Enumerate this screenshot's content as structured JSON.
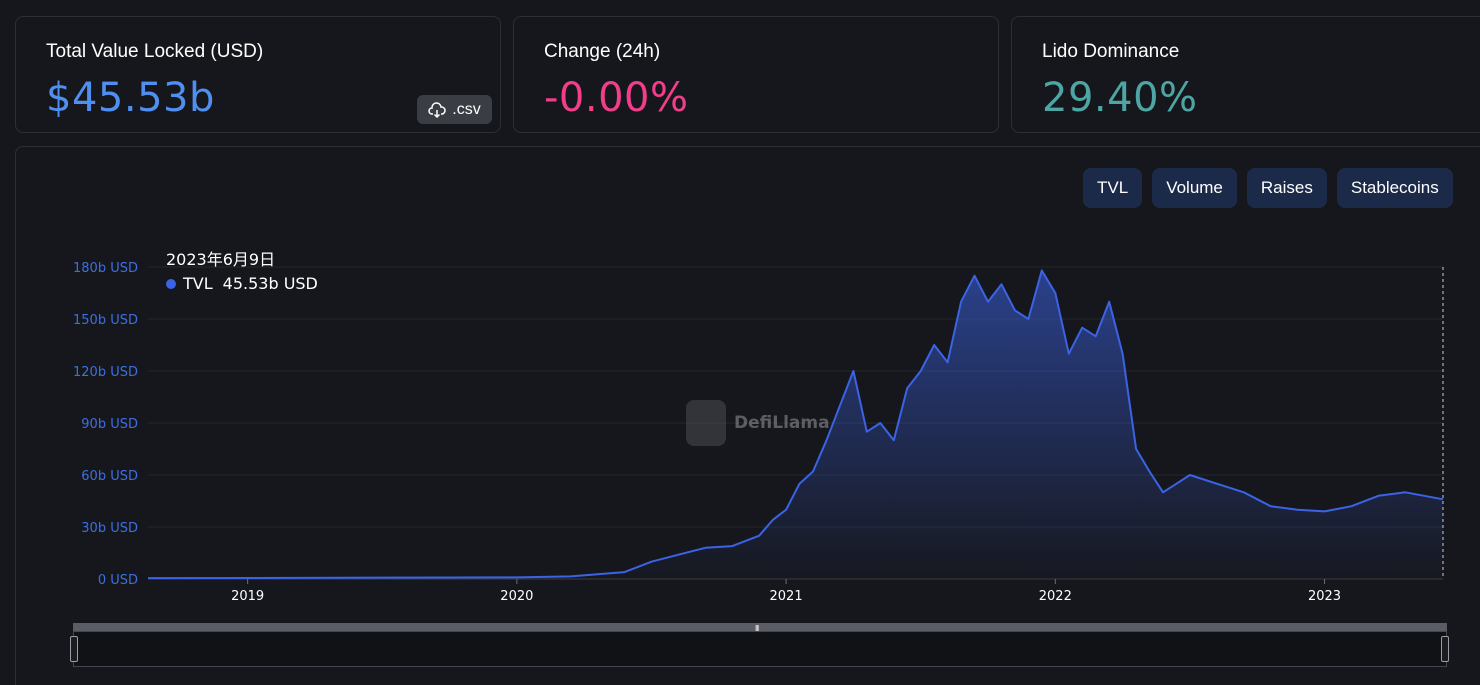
{
  "cards": {
    "tvl": {
      "label": "Total Value Locked (USD)",
      "value": "$45.53b",
      "value_color": "#4f8ff0",
      "csv_label": ".csv"
    },
    "change": {
      "label": "Change (24h)",
      "value": "-0.00%",
      "value_color": "#f23d8a"
    },
    "dominance": {
      "label": "Lido Dominance",
      "value": "29.40%",
      "value_color": "#4da6a4"
    }
  },
  "tabs": [
    {
      "label": "TVL"
    },
    {
      "label": "Volume"
    },
    {
      "label": "Raises"
    },
    {
      "label": "Stablecoins"
    }
  ],
  "tooltip": {
    "date": "2023年6月9日",
    "series": "TVL",
    "value": "45.53b USD"
  },
  "watermark": "DefiLlama",
  "colors": {
    "line": "#3b63e6",
    "accent_tab": "#1c2a4a"
  },
  "chart_data": {
    "type": "area",
    "series_name": "TVL",
    "y_unit": "b USD",
    "ylim": [
      0,
      180
    ],
    "y_ticks": [
      "0 USD",
      "30b USD",
      "60b USD",
      "90b USD",
      "120b USD",
      "150b USD",
      "180b USD"
    ],
    "y_tick_values": [
      0,
      30,
      60,
      90,
      120,
      150,
      180
    ],
    "x_ticks": [
      "2019",
      "2020",
      "2021",
      "2022",
      "2023"
    ],
    "x_tick_values": [
      2019.0,
      2020.0,
      2021.0,
      2022.0,
      2023.0
    ],
    "xlim": [
      2018.63,
      2023.44
    ],
    "x": [
      2018.63,
      2019.0,
      2019.5,
      2020.0,
      2020.2,
      2020.4,
      2020.5,
      2020.6,
      2020.7,
      2020.8,
      2020.9,
      2020.95,
      2021.0,
      2021.05,
      2021.1,
      2021.15,
      2021.2,
      2021.25,
      2021.3,
      2021.35,
      2021.4,
      2021.45,
      2021.5,
      2021.55,
      2021.6,
      2021.65,
      2021.7,
      2021.75,
      2021.8,
      2021.85,
      2021.9,
      2021.95,
      2022.0,
      2022.05,
      2022.1,
      2022.15,
      2022.2,
      2022.25,
      2022.3,
      2022.35,
      2022.4,
      2022.45,
      2022.5,
      2022.6,
      2022.7,
      2022.8,
      2022.9,
      2023.0,
      2023.1,
      2023.2,
      2023.3,
      2023.44
    ],
    "y": [
      0.5,
      0.6,
      0.8,
      0.9,
      1.5,
      4,
      10,
      14,
      18,
      19,
      25,
      34,
      40,
      55,
      62,
      80,
      100,
      120,
      85,
      90,
      80,
      110,
      120,
      135,
      125,
      160,
      175,
      160,
      170,
      155,
      150,
      178,
      165,
      130,
      145,
      140,
      160,
      130,
      75,
      62,
      50,
      55,
      60,
      55,
      50,
      42,
      40,
      39,
      42,
      48,
      50,
      46
    ]
  }
}
